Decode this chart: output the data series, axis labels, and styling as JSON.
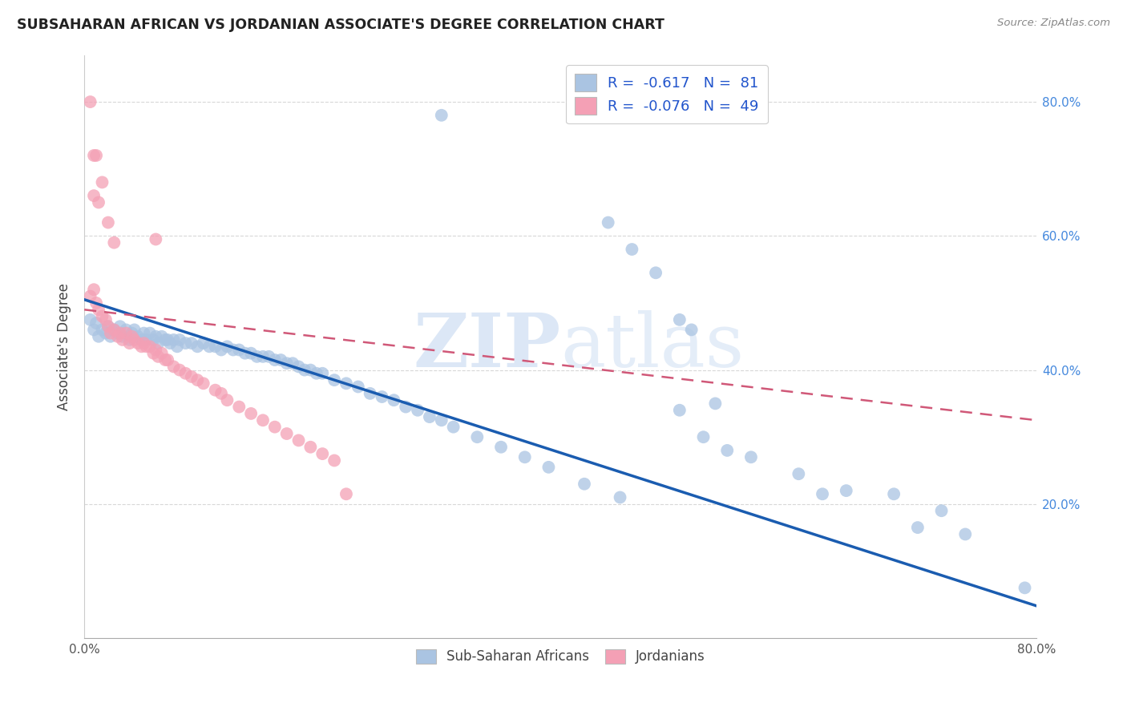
{
  "title": "SUBSAHARAN AFRICAN VS JORDANIAN ASSOCIATE'S DEGREE CORRELATION CHART",
  "source": "Source: ZipAtlas.com",
  "ylabel": "Associate's Degree",
  "right_yticks": [
    "80.0%",
    "60.0%",
    "40.0%",
    "20.0%"
  ],
  "right_ytick_vals": [
    0.8,
    0.6,
    0.4,
    0.2
  ],
  "legend_blue_r": "-0.617",
  "legend_blue_n": "81",
  "legend_pink_r": "-0.076",
  "legend_pink_n": "49",
  "blue_color": "#aac4e2",
  "pink_color": "#f4a0b5",
  "blue_line_color": "#1a5cb0",
  "pink_line_color": "#d05878",
  "watermark_zip": "ZIP",
  "watermark_atlas": "atlas",
  "blue_scatter_x": [
    0.005,
    0.008,
    0.01,
    0.012,
    0.015,
    0.018,
    0.02,
    0.022,
    0.025,
    0.028,
    0.03,
    0.032,
    0.035,
    0.038,
    0.04,
    0.042,
    0.045,
    0.048,
    0.05,
    0.052,
    0.055,
    0.058,
    0.06,
    0.062,
    0.065,
    0.068,
    0.07,
    0.072,
    0.075,
    0.078,
    0.08,
    0.085,
    0.09,
    0.095,
    0.1,
    0.105,
    0.11,
    0.115,
    0.12,
    0.125,
    0.13,
    0.135,
    0.14,
    0.145,
    0.15,
    0.155,
    0.16,
    0.165,
    0.17,
    0.175,
    0.18,
    0.185,
    0.19,
    0.195,
    0.2,
    0.21,
    0.22,
    0.23,
    0.24,
    0.25,
    0.26,
    0.27,
    0.28,
    0.29,
    0.3,
    0.31,
    0.33,
    0.35,
    0.37,
    0.39,
    0.42,
    0.45,
    0.5,
    0.52,
    0.54,
    0.56,
    0.6,
    0.64,
    0.68,
    0.72,
    0.79
  ],
  "blue_scatter_y": [
    0.475,
    0.46,
    0.47,
    0.45,
    0.46,
    0.455,
    0.465,
    0.45,
    0.46,
    0.455,
    0.465,
    0.45,
    0.46,
    0.445,
    0.455,
    0.46,
    0.45,
    0.445,
    0.455,
    0.445,
    0.455,
    0.445,
    0.45,
    0.44,
    0.45,
    0.445,
    0.445,
    0.44,
    0.445,
    0.435,
    0.445,
    0.44,
    0.44,
    0.435,
    0.44,
    0.435,
    0.435,
    0.43,
    0.435,
    0.43,
    0.43,
    0.425,
    0.425,
    0.42,
    0.42,
    0.42,
    0.415,
    0.415,
    0.41,
    0.41,
    0.405,
    0.4,
    0.4,
    0.395,
    0.395,
    0.385,
    0.38,
    0.375,
    0.365,
    0.36,
    0.355,
    0.345,
    0.34,
    0.33,
    0.325,
    0.315,
    0.3,
    0.285,
    0.27,
    0.255,
    0.23,
    0.21,
    0.34,
    0.3,
    0.28,
    0.27,
    0.245,
    0.22,
    0.215,
    0.19,
    0.075
  ],
  "blue_scatter_x2": [
    0.3,
    0.44,
    0.46,
    0.48,
    0.5,
    0.51,
    0.53,
    0.62,
    0.7,
    0.74
  ],
  "blue_scatter_y2": [
    0.78,
    0.62,
    0.58,
    0.545,
    0.475,
    0.46,
    0.35,
    0.215,
    0.165,
    0.155
  ],
  "pink_scatter_x": [
    0.005,
    0.008,
    0.01,
    0.012,
    0.015,
    0.018,
    0.02,
    0.022,
    0.025,
    0.028,
    0.03,
    0.032,
    0.035,
    0.038,
    0.04,
    0.042,
    0.045,
    0.048,
    0.05,
    0.052,
    0.055,
    0.058,
    0.06,
    0.062,
    0.065,
    0.068,
    0.07,
    0.075,
    0.08,
    0.085,
    0.09,
    0.095,
    0.1,
    0.11,
    0.115,
    0.12,
    0.13,
    0.14,
    0.15,
    0.16,
    0.17,
    0.18,
    0.19,
    0.2,
    0.21,
    0.22,
    0.008,
    0.012,
    0.06
  ],
  "pink_scatter_y": [
    0.51,
    0.52,
    0.5,
    0.49,
    0.48,
    0.475,
    0.465,
    0.455,
    0.46,
    0.45,
    0.455,
    0.445,
    0.455,
    0.44,
    0.45,
    0.445,
    0.44,
    0.435,
    0.44,
    0.435,
    0.435,
    0.425,
    0.43,
    0.42,
    0.425,
    0.415,
    0.415,
    0.405,
    0.4,
    0.395,
    0.39,
    0.385,
    0.38,
    0.37,
    0.365,
    0.355,
    0.345,
    0.335,
    0.325,
    0.315,
    0.305,
    0.295,
    0.285,
    0.275,
    0.265,
    0.215,
    0.72,
    0.65,
    0.595
  ],
  "pink_outlier_x": [
    0.005,
    0.01,
    0.015,
    0.008,
    0.02,
    0.025
  ],
  "pink_outlier_y": [
    0.8,
    0.72,
    0.68,
    0.66,
    0.62,
    0.59
  ],
  "blue_line_x": [
    0.0,
    0.8
  ],
  "blue_line_y": [
    0.505,
    0.048
  ],
  "pink_line_x": [
    0.0,
    0.8
  ],
  "pink_line_y": [
    0.49,
    0.325
  ],
  "xlim": [
    0.0,
    0.8
  ],
  "ylim": [
    0.0,
    0.87
  ],
  "background_color": "#ffffff",
  "grid_color": "#d8d8d8"
}
